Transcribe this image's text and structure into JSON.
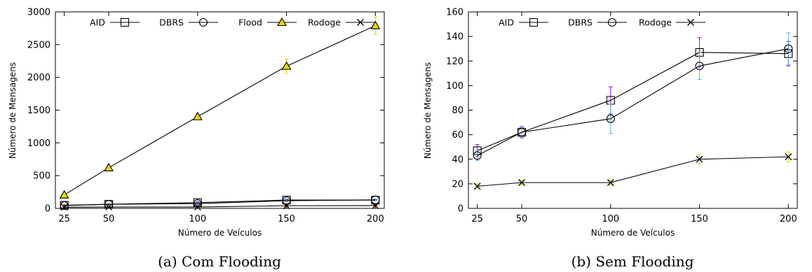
{
  "chart_data": [
    {
      "type": "line",
      "caption": "(a) Com Flooding",
      "xlabel": "Número de Veículos",
      "ylabel": "Número de Mensagens",
      "x": [
        25,
        50,
        100,
        150,
        200
      ],
      "xlim": [
        20,
        205
      ],
      "ylim": [
        0,
        3000
      ],
      "yticks": [
        0,
        500,
        1000,
        1500,
        2000,
        2500,
        3000
      ],
      "grid": false,
      "legend_position": "top",
      "series": [
        {
          "name": "AID",
          "marker": "square",
          "values": [
            47,
            63,
            88,
            127,
            126
          ],
          "err": [
            5,
            4,
            11,
            12,
            10
          ],
          "errColor": "#9400D3"
        },
        {
          "name": "DBRS",
          "marker": "circle",
          "values": [
            43,
            62,
            73,
            116,
            130
          ],
          "err": [
            4,
            5,
            12,
            11,
            13
          ],
          "errColor": "#56B4E9"
        },
        {
          "name": "Flood",
          "marker": "triangle",
          "values": [
            205,
            620,
            1400,
            2170,
            2790
          ],
          "err": [
            15,
            20,
            40,
            110,
            130
          ],
          "errColor": "#E6D800"
        },
        {
          "name": "Rodoge",
          "marker": "x",
          "values": [
            18,
            21,
            21,
            40,
            42
          ],
          "err": [
            2,
            2,
            2,
            4,
            4
          ],
          "errColor": "#C0392B"
        }
      ]
    },
    {
      "type": "line",
      "caption": "(b) Sem Flooding",
      "xlabel": "Número de Veículos",
      "ylabel": "Número de Mensagens",
      "x": [
        25,
        50,
        100,
        150,
        200
      ],
      "xlim": [
        20,
        205
      ],
      "ylim": [
        0,
        160
      ],
      "yticks": [
        0,
        20,
        40,
        60,
        80,
        100,
        120,
        140,
        160
      ],
      "grid": false,
      "legend_position": "top",
      "series": [
        {
          "name": "AID",
          "marker": "square",
          "values": [
            47,
            62,
            88,
            127,
            126
          ],
          "err": [
            5,
            4,
            11,
            12,
            10
          ],
          "errColor": "#9400D3"
        },
        {
          "name": "DBRS",
          "marker": "circle",
          "values": [
            43,
            62,
            73,
            116,
            130
          ],
          "err": [
            4,
            5,
            12,
            11,
            13
          ],
          "errColor": "#56B4E9"
        },
        {
          "name": "Rodoge",
          "marker": "x",
          "values": [
            18,
            21,
            21,
            40,
            42
          ],
          "err": [
            2,
            2,
            2,
            4,
            4
          ],
          "errColor": "#E6D800"
        }
      ]
    }
  ],
  "colors": {
    "line": "#000000",
    "flood_fill": "#E6D800",
    "marker_fill": "#ffffff"
  }
}
